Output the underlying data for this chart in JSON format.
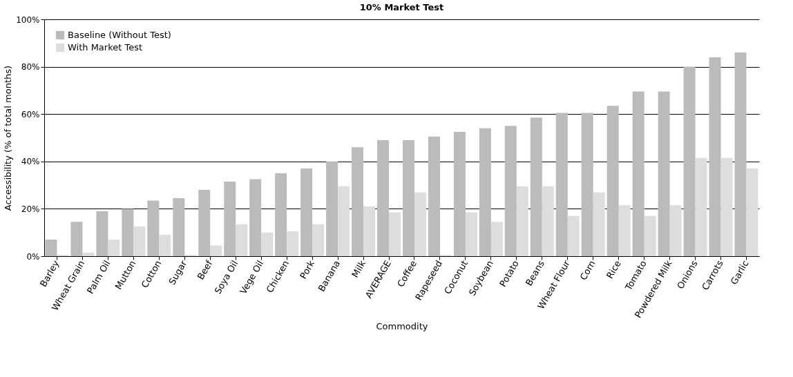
{
  "chart_data": {
    "type": "bar",
    "title": "10% Market Test",
    "xlabel": "Commodity",
    "ylabel": "Accessibility (% of total months)",
    "categories": [
      "Barley",
      "Wheat Grain",
      "Palm Oil",
      "Mutton",
      "Cotton",
      "Sugar",
      "Beef",
      "Soya Oil",
      "Vege Oil",
      "Chicken",
      "Pork",
      "Banana",
      "Milk",
      "AVERAGE",
      "Coffee",
      "Rapeseed",
      "Coconut",
      "Soybean",
      "Potato",
      "Beans",
      "Wheat Flour",
      "Corn",
      "Rice",
      "Tomato",
      "Powdered Milk",
      "Onions",
      "Carrots",
      "Garlic"
    ],
    "series": [
      {
        "name": "Baseline (Without Test)",
        "color": "#bbbbbb",
        "values": [
          7,
          14.5,
          19,
          20,
          23.5,
          24.5,
          28,
          31.5,
          32.5,
          35,
          37,
          40,
          46,
          49,
          49,
          50.5,
          52.5,
          54,
          55,
          58.5,
          60.5,
          60.5,
          63.5,
          69.5,
          69.5,
          80,
          84,
          86
        ]
      },
      {
        "name": "With Market Test",
        "color": "#dddddd",
        "values": [
          0.5,
          1.5,
          7,
          12.5,
          9,
          0.5,
          4.5,
          13.5,
          10,
          10.5,
          13.5,
          29.5,
          21,
          18.5,
          27,
          0.5,
          18.5,
          14.5,
          29.5,
          29.5,
          17,
          27,
          21.5,
          17,
          21.5,
          41.5,
          41.5,
          37
        ]
      }
    ],
    "ylim": [
      0,
      100
    ],
    "yticks": [
      {
        "value": 0,
        "label": "0%"
      },
      {
        "value": 20,
        "label": "20%"
      },
      {
        "value": 40,
        "label": "40%"
      },
      {
        "value": 60,
        "label": "60%"
      },
      {
        "value": 80,
        "label": "80%"
      },
      {
        "value": 100,
        "label": "100%"
      }
    ],
    "grid": "y",
    "legend": "top left"
  }
}
